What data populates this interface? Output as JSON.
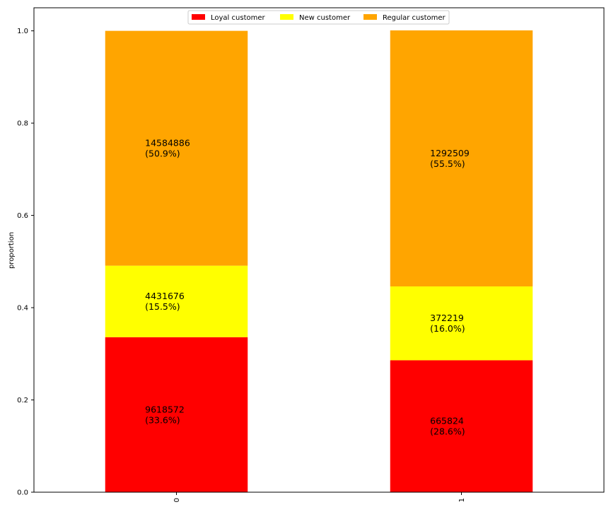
{
  "chart_data": {
    "type": "bar",
    "stacked": true,
    "categories": [
      "0",
      "1"
    ],
    "ylabel": "proportion",
    "xlabel": "",
    "ylim": [
      0,
      1.05
    ],
    "yticks": [
      "0.0",
      "0.2",
      "0.4",
      "0.6",
      "0.8",
      "1.0"
    ],
    "grid": false,
    "legend_position": "top-center",
    "series": [
      {
        "name": "Loyal customer",
        "color": "#ff0000",
        "values": [
          0.336,
          0.286
        ],
        "labels": [
          [
            "9618572",
            "(33.6%)"
          ],
          [
            "665824",
            "(28.6%)"
          ]
        ]
      },
      {
        "name": "New customer",
        "color": "#ffff00",
        "values": [
          0.155,
          0.16
        ],
        "labels": [
          [
            "4431676",
            "(15.5%)"
          ],
          [
            "372219",
            "(16.0%)"
          ]
        ]
      },
      {
        "name": "Regular customer",
        "color": "#ffa500",
        "values": [
          0.509,
          0.555
        ],
        "labels": [
          [
            "14584886",
            "(50.9%)"
          ],
          [
            "1292509",
            "(55.5%)"
          ]
        ]
      }
    ]
  }
}
